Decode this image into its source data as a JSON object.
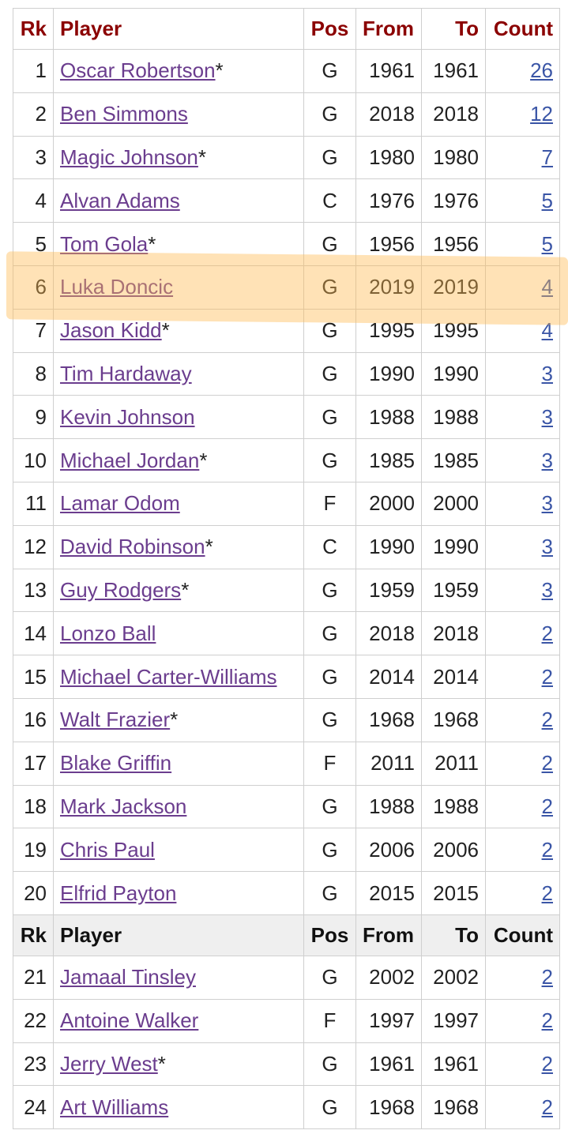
{
  "table": {
    "header": [
      "Rk",
      "Player",
      "Pos",
      "From",
      "To",
      "Count"
    ],
    "sections": [
      {
        "rows": [
          {
            "rk": 1,
            "player": "Oscar Robertson",
            "mark": "*",
            "pos": "G",
            "from": 1961,
            "to": 1961,
            "count": 26
          },
          {
            "rk": 2,
            "player": "Ben Simmons",
            "pos": "G",
            "from": 2018,
            "to": 2018,
            "count": 12
          },
          {
            "rk": 3,
            "player": "Magic Johnson",
            "mark": "*",
            "pos": "G",
            "from": 1980,
            "to": 1980,
            "count": 7
          },
          {
            "rk": 4,
            "player": "Alvan Adams",
            "pos": "C",
            "from": 1976,
            "to": 1976,
            "count": 5
          },
          {
            "rk": 5,
            "player": "Tom Gola",
            "mark": "*",
            "pos": "G",
            "from": 1956,
            "to": 1956,
            "count": 5
          },
          {
            "rk": 6,
            "player": "Luka Doncic",
            "pos": "G",
            "from": 2019,
            "to": 2019,
            "count": 4
          },
          {
            "rk": 7,
            "player": "Jason Kidd",
            "mark": "*",
            "pos": "G",
            "from": 1995,
            "to": 1995,
            "count": 4
          },
          {
            "rk": 8,
            "player": "Tim Hardaway",
            "pos": "G",
            "from": 1990,
            "to": 1990,
            "count": 3
          },
          {
            "rk": 9,
            "player": "Kevin Johnson",
            "pos": "G",
            "from": 1988,
            "to": 1988,
            "count": 3
          },
          {
            "rk": 10,
            "player": "Michael Jordan",
            "mark": "*",
            "pos": "G",
            "from": 1985,
            "to": 1985,
            "count": 3
          },
          {
            "rk": 11,
            "player": "Lamar Odom",
            "pos": "F",
            "from": 2000,
            "to": 2000,
            "count": 3
          },
          {
            "rk": 12,
            "player": "David Robinson",
            "mark": "*",
            "pos": "C",
            "from": 1990,
            "to": 1990,
            "count": 3
          },
          {
            "rk": 13,
            "player": "Guy Rodgers",
            "mark": "*",
            "pos": "G",
            "from": 1959,
            "to": 1959,
            "count": 3
          },
          {
            "rk": 14,
            "player": "Lonzo Ball",
            "pos": "G",
            "from": 2018,
            "to": 2018,
            "count": 2
          },
          {
            "rk": 15,
            "player": "Michael Carter-Williams",
            "pos": "G",
            "from": 2014,
            "to": 2014,
            "count": 2
          },
          {
            "rk": 16,
            "player": "Walt Frazier",
            "mark": "*",
            "pos": "G",
            "from": 1968,
            "to": 1968,
            "count": 2
          },
          {
            "rk": 17,
            "player": "Blake Griffin",
            "pos": "F",
            "from": 2011,
            "to": 2011,
            "count": 2
          },
          {
            "rk": 18,
            "player": "Mark Jackson",
            "pos": "G",
            "from": 1988,
            "to": 1988,
            "count": 2
          },
          {
            "rk": 19,
            "player": "Chris Paul",
            "pos": "G",
            "from": 2006,
            "to": 2006,
            "count": 2
          },
          {
            "rk": 20,
            "player": "Elfrid Payton",
            "pos": "G",
            "from": 2015,
            "to": 2015,
            "count": 2
          }
        ]
      },
      {
        "rows": [
          {
            "rk": 21,
            "player": "Jamaal Tinsley",
            "pos": "G",
            "from": 2002,
            "to": 2002,
            "count": 2
          },
          {
            "rk": 22,
            "player": "Antoine Walker",
            "pos": "F",
            "from": 1997,
            "to": 1997,
            "count": 2
          },
          {
            "rk": 23,
            "player": "Jerry West",
            "mark": "*",
            "pos": "G",
            "from": 1961,
            "to": 1961,
            "count": 2
          },
          {
            "rk": 24,
            "player": "Art Williams",
            "pos": "G",
            "from": 1968,
            "to": 1968,
            "count": 2
          }
        ]
      }
    ]
  }
}
